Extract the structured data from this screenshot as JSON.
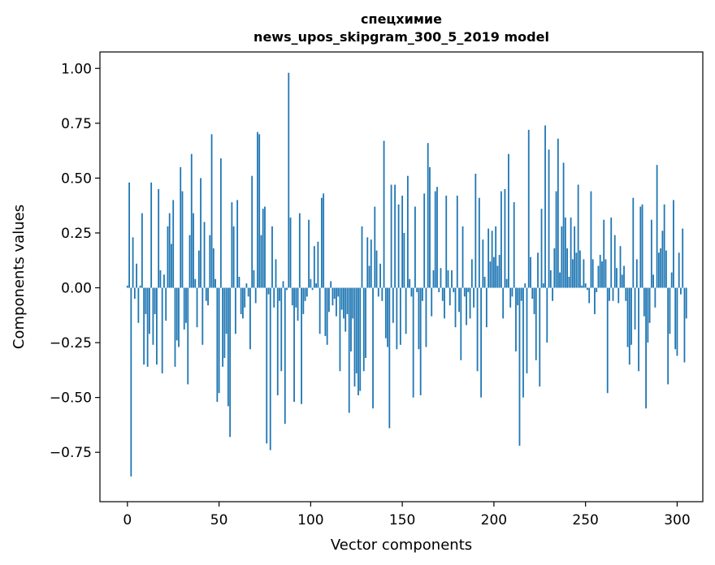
{
  "chart_data": {
    "type": "bar",
    "title": "спецхимие",
    "subtitle": "news_upos_skipgram_300_5_2019 model",
    "xlabel": "Vector components",
    "ylabel": "Components values",
    "xlim": [
      -15,
      314
    ],
    "ylim": [
      -0.975,
      1.075
    ],
    "xticks": [
      0,
      50,
      100,
      150,
      200,
      250,
      300
    ],
    "yticks": [
      -0.75,
      -0.5,
      -0.25,
      0.0,
      0.25,
      0.5,
      0.75,
      1.0
    ],
    "xtick_labels": [
      "0",
      "50",
      "100",
      "150",
      "200",
      "250",
      "300"
    ],
    "ytick_labels": [
      "−0.75",
      "−0.50",
      "−0.25",
      "0.00",
      "0.25",
      "0.50",
      "0.75",
      "1.00"
    ],
    "bar_color": "#1f77b4",
    "grid": false,
    "values": [
      0.01,
      0.48,
      -0.86,
      0.23,
      -0.05,
      0.11,
      -0.16,
      0.01,
      0.34,
      -0.35,
      -0.12,
      -0.36,
      -0.21,
      0.48,
      -0.26,
      -0.12,
      -0.35,
      0.45,
      0.08,
      -0.39,
      0.06,
      -0.15,
      0.28,
      0.34,
      0.2,
      0.4,
      -0.36,
      -0.24,
      -0.27,
      0.55,
      0.44,
      -0.19,
      -0.16,
      -0.44,
      0.24,
      0.61,
      0.34,
      0.04,
      -0.18,
      0.17,
      0.5,
      -0.26,
      0.3,
      -0.06,
      -0.08,
      0.24,
      0.7,
      0.18,
      0.04,
      -0.52,
      -0.48,
      0.59,
      -0.36,
      -0.32,
      -0.21,
      -0.54,
      -0.68,
      0.39,
      0.28,
      -0.21,
      0.4,
      0.05,
      -0.12,
      -0.14,
      -0.09,
      0.02,
      -0.04,
      -0.28,
      0.51,
      0.08,
      -0.07,
      0.71,
      0.7,
      0.24,
      0.36,
      0.37,
      -0.71,
      -0.03,
      -0.74,
      0.28,
      -0.09,
      0.13,
      -0.49,
      -0.06,
      -0.38,
      0.03,
      -0.62,
      -0.01,
      0.98,
      0.32,
      -0.08,
      -0.52,
      -0.09,
      -0.15,
      0.34,
      -0.53,
      -0.12,
      -0.06,
      -0.04,
      0.31,
      0.04,
      -0.01,
      0.19,
      0.02,
      0.21,
      -0.21,
      0.41,
      0.43,
      -0.22,
      -0.26,
      -0.11,
      0.03,
      -0.08,
      -0.05,
      -0.13,
      -0.04,
      -0.38,
      -0.1,
      -0.14,
      -0.2,
      -0.12,
      -0.57,
      -0.29,
      -0.14,
      -0.45,
      -0.39,
      -0.49,
      -0.47,
      0.28,
      -0.38,
      -0.32,
      0.23,
      0.1,
      0.22,
      -0.55,
      0.37,
      0.17,
      -0.04,
      0.11,
      -0.06,
      0.67,
      -0.23,
      -0.27,
      -0.64,
      0.47,
      -0.16,
      0.47,
      -0.28,
      0.38,
      -0.26,
      0.42,
      0.25,
      -0.21,
      0.51,
      0.04,
      -0.04,
      -0.5,
      0.37,
      -0.02,
      -0.28,
      -0.49,
      -0.06,
      0.43,
      -0.27,
      0.66,
      0.55,
      -0.13,
      0.08,
      0.44,
      0.46,
      -0.02,
      0.09,
      -0.06,
      -0.14,
      0.42,
      0.08,
      -0.08,
      0.08,
      -0.02,
      -0.18,
      0.42,
      -0.11,
      -0.33,
      0.28,
      -0.04,
      -0.17,
      -0.02,
      -0.14,
      0.13,
      -0.09,
      0.52,
      -0.38,
      0.41,
      -0.5,
      0.22,
      0.05,
      -0.18,
      0.27,
      0.12,
      0.26,
      0.14,
      0.28,
      0.1,
      0.15,
      0.44,
      -0.14,
      0.45,
      0.04,
      0.61,
      -0.09,
      -0.04,
      0.39,
      -0.29,
      -0.08,
      -0.72,
      -0.06,
      -0.5,
      0.02,
      -0.39,
      0.72,
      0.14,
      -0.05,
      -0.12,
      -0.33,
      0.16,
      -0.45,
      0.36,
      0.02,
      0.74,
      -0.25,
      0.63,
      0.08,
      -0.06,
      0.18,
      0.44,
      0.68,
      0.07,
      0.28,
      0.57,
      0.32,
      0.18,
      0.05,
      0.32,
      0.13,
      0.28,
      0.16,
      0.47,
      0.17,
      0.01,
      0.13,
      0.02,
      -0.01,
      -0.07,
      0.44,
      0.13,
      -0.12,
      -0.02,
      0.1,
      0.15,
      0.12,
      0.31,
      0.13,
      -0.48,
      -0.06,
      0.32,
      -0.06,
      0.24,
      0.09,
      -0.07,
      0.19,
      0.06,
      0.1,
      -0.06,
      -0.27,
      -0.35,
      -0.26,
      0.41,
      -0.19,
      0.13,
      -0.38,
      0.37,
      0.38,
      -0.13,
      -0.55,
      -0.25,
      -0.16,
      0.31,
      0.06,
      -0.09,
      0.56,
      0.16,
      0.18,
      0.26,
      0.38,
      0.17,
      -0.44,
      -0.21,
      0.07,
      0.4,
      -0.28,
      -0.31,
      0.16,
      -0.03,
      0.27,
      -0.34,
      -0.14
    ]
  }
}
